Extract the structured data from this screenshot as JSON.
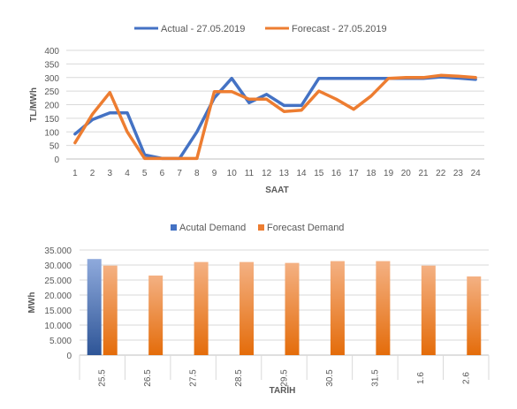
{
  "chart_data": [
    {
      "type": "line",
      "xlabel": "SAAT",
      "ylabel": "TL/MWh",
      "ylim": [
        0,
        400
      ],
      "yticks": [
        "0",
        "50",
        "100",
        "150",
        "200",
        "250",
        "300",
        "350",
        "400"
      ],
      "legend_position": "top",
      "grid": true,
      "x": [
        "1",
        "2",
        "3",
        "4",
        "5",
        "6",
        "7",
        "8",
        "9",
        "10",
        "11",
        "12",
        "13",
        "14",
        "15",
        "16",
        "17",
        "18",
        "19",
        "20",
        "21",
        "22",
        "23",
        "24"
      ],
      "series": [
        {
          "name": "Actual - 27.05.2019",
          "color": "#4472C4",
          "values": [
            92,
            145,
            170,
            170,
            15,
            2,
            2,
            100,
            225,
            297,
            207,
            238,
            197,
            197,
            297,
            297,
            297,
            297,
            297,
            297,
            297,
            302,
            298,
            293
          ]
        },
        {
          "name": "Forecast - 27.05.2019",
          "color": "#ED7D31",
          "values": [
            60,
            165,
            245,
            100,
            2,
            2,
            2,
            2,
            248,
            248,
            220,
            220,
            175,
            180,
            250,
            220,
            183,
            232,
            297,
            300,
            300,
            308,
            305,
            300
          ]
        }
      ]
    },
    {
      "type": "bar",
      "xlabel": "TARİH",
      "ylabel": "MWh",
      "ylim": [
        0,
        35000
      ],
      "yticks": [
        "0",
        "5.000",
        "10.000",
        "15.000",
        "20.000",
        "25.000",
        "30.000",
        "35.000"
      ],
      "legend_position": "top",
      "grid": true,
      "categories": [
        "25.5",
        "26.5",
        "27.5",
        "28.5",
        "29.5",
        "30.5",
        "31.5",
        "1.6",
        "2.6"
      ],
      "series": [
        {
          "name": "Acutal Demand",
          "color": "#4472C4",
          "values": [
            32000,
            null,
            null,
            null,
            null,
            null,
            null,
            null,
            null
          ]
        },
        {
          "name": "Forecast Demand",
          "color": "#ED7D31",
          "values": [
            29800,
            26500,
            31000,
            31000,
            30700,
            31300,
            31300,
            29800,
            26200
          ]
        }
      ]
    }
  ]
}
